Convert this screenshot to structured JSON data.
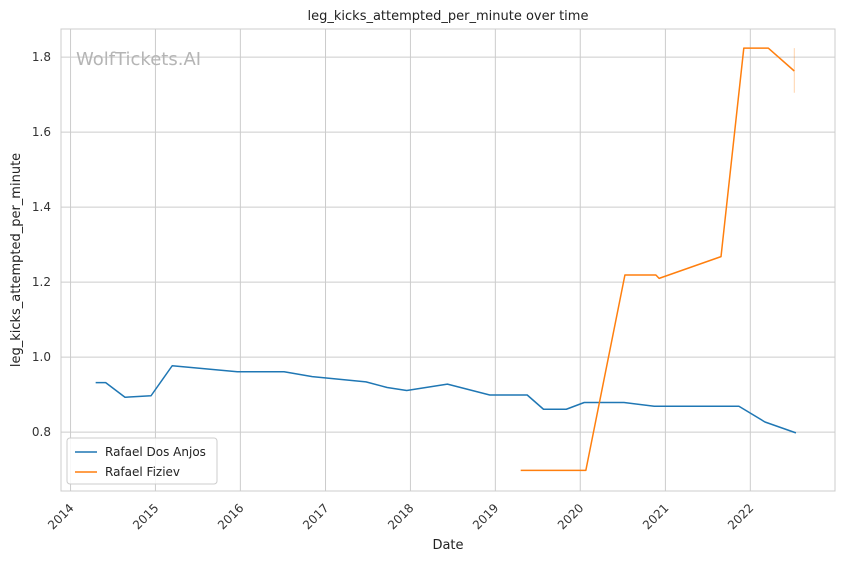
{
  "chart_data": {
    "type": "line",
    "title": "leg_kicks_attempted_per_minute over time",
    "xlabel": "Date",
    "ylabel": "leg_kicks_attempted_per_minute",
    "watermark": "WolfTickets.AI",
    "xlim": [
      "2013-11-21",
      "2022-12-31"
    ],
    "ylim": [
      0.643,
      1.875
    ],
    "x_ticks": [
      "2014",
      "2015",
      "2016",
      "2017",
      "2018",
      "2019",
      "2020",
      "2021",
      "2022"
    ],
    "y_ticks": [
      "0.8",
      "1.0",
      "1.2",
      "1.4",
      "1.6",
      "1.8"
    ],
    "grid": true,
    "legend_position": "lower-left",
    "colors": {
      "Rafael Dos Anjos": "#1f77b4",
      "Rafael Fiziev": "#ff7f0e",
      "grid": "#cccccc",
      "frame": "#cccccc"
    },
    "series": [
      {
        "name": "Rafael Dos Anjos",
        "color": "#1f77b4",
        "x": [
          "2014-04-19",
          "2014-06-01",
          "2014-08-23",
          "2014-12-13",
          "2015-03-14",
          "2015-12-19",
          "2016-07-07",
          "2016-11-05",
          "2017-06-24",
          "2017-09-23",
          "2017-12-16",
          "2018-06-09",
          "2018-12-08",
          "2019-05-18",
          "2019-07-27",
          "2019-11-02",
          "2020-01-18",
          "2020-07-07",
          "2020-11-14",
          "2021-11-13",
          "2022-03-05",
          "2022-07-16"
        ],
        "y": [
          0.932,
          0.932,
          0.893,
          0.897,
          0.977,
          0.961,
          0.961,
          0.948,
          0.934,
          0.919,
          0.911,
          0.928,
          0.899,
          0.899,
          0.861,
          0.861,
          0.879,
          0.879,
          0.869,
          0.869,
          0.827,
          0.798
        ]
      },
      {
        "name": "Rafael Fiziev",
        "color": "#ff7f0e",
        "x": [
          "2019-04-20",
          "2019-07-13",
          "2019-10-05",
          "2020-01-25",
          "2020-07-11",
          "2020-10-31",
          "2020-11-21",
          "2020-12-05",
          "2021-08-28",
          "2021-12-04",
          "2022-03-19",
          "2022-07-09"
        ],
        "y": [
          0.698,
          0.698,
          0.698,
          0.698,
          1.219,
          1.219,
          1.219,
          1.21,
          1.268,
          1.824,
          1.824,
          1.763
        ]
      }
    ],
    "error_bar": {
      "series": "Rafael Fiziev",
      "x": "2022-07-09",
      "y_low": 1.705,
      "y_high": 1.824
    }
  }
}
